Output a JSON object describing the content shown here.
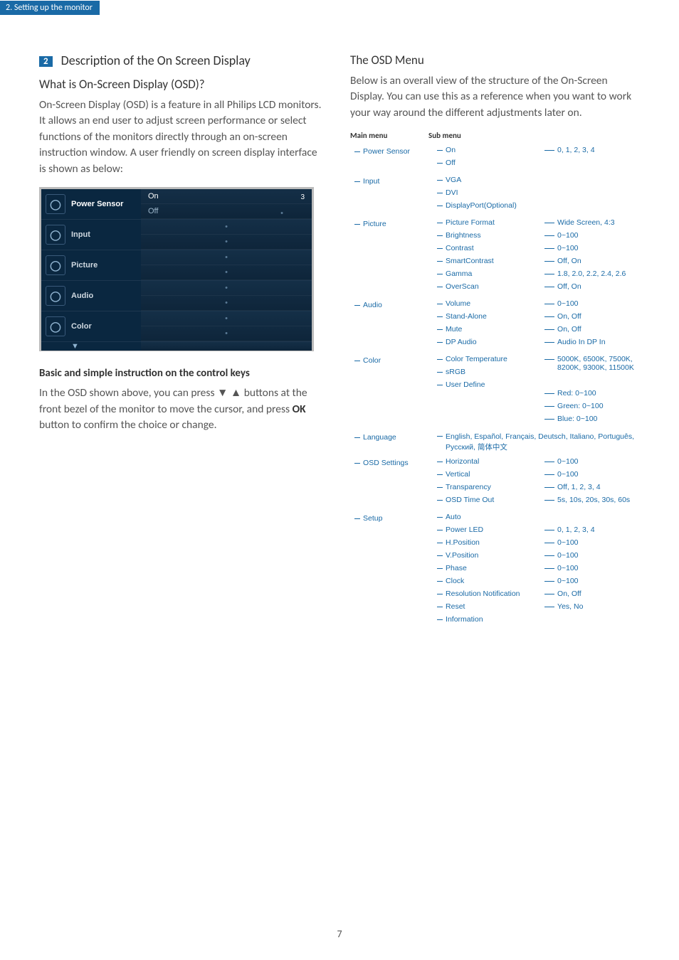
{
  "header": {
    "section_tab": "2. Setting up the monitor"
  },
  "left": {
    "num": "2",
    "title": "Description of the On Screen Display",
    "q": "What is On-Screen Display (OSD)?",
    "p1": "On-Screen Display (OSD) is a feature in all Philips LCD monitors. It allows an end user to adjust screen performance or select functions of the monitors directly through an on-screen instruction window. A user friendly on screen display interface is shown as below:",
    "osd": {
      "items": [
        {
          "label": "Power Sensor",
          "active": true,
          "on": "On",
          "off": "Off",
          "slider": "3"
        },
        {
          "label": "Input"
        },
        {
          "label": "Picture"
        },
        {
          "label": "Audio"
        },
        {
          "label": "Color"
        }
      ]
    },
    "h2": "Basic and simple instruction on the control keys",
    "p2a": "In the OSD shown above, you can press ▼ ▲ buttons at the front bezel of the monitor to move the cursor, and press ",
    "p2ok": "OK",
    "p2b": " button to confirm the choice or change."
  },
  "right": {
    "title": "The OSD Menu",
    "intro": "Below is an overall view of the structure of the On-Screen Display. You can use this as a reference when you want to work your way around the different adjustments later on.",
    "head_main": "Main menu",
    "head_sub": "Sub menu",
    "tree": [
      {
        "m": "Power Sensor",
        "subs": [
          {
            "s": "On",
            "v": "0, 1, 2, 3, 4"
          },
          {
            "s": "Off"
          }
        ]
      },
      {
        "m": "Input",
        "subs": [
          {
            "s": "VGA"
          },
          {
            "s": "DVI"
          },
          {
            "s": "DisplayPort(Optional)"
          }
        ]
      },
      {
        "m": "Picture",
        "subs": [
          {
            "s": "Picture Format",
            "v": "Wide Screen, 4:3"
          },
          {
            "s": "Brightness",
            "v": "0~100"
          },
          {
            "s": "Contrast",
            "v": "0~100"
          },
          {
            "s": "SmartContrast",
            "v": "Off, On"
          },
          {
            "s": "Gamma",
            "v": "1.8, 2.0, 2.2, 2.4, 2.6"
          },
          {
            "s": "OverScan",
            "v": "Off, On"
          }
        ]
      },
      {
        "m": "Audio",
        "subs": [
          {
            "s": "Volume",
            "v": "0~100"
          },
          {
            "s": "Stand-Alone",
            "v": "On, Off"
          },
          {
            "s": "Mute",
            "v": "On, Off"
          },
          {
            "s": "DP Audio",
            "v": "Audio In   DP In"
          }
        ]
      },
      {
        "m": "Color",
        "subs": [
          {
            "s": "Color Temperature",
            "v": "5000K, 6500K, 7500K, 8200K, 9300K, 11500K"
          },
          {
            "s": "sRGB"
          },
          {
            "s": "User Define",
            "vmulti": [
              "Red: 0~100",
              "Green: 0~100",
              "Blue: 0~100"
            ]
          }
        ]
      },
      {
        "m": "Language",
        "lang": "English, Español, Français, Deutsch, Italiano, Português, Русский, 简体中文"
      },
      {
        "m": "OSD Settings",
        "subs": [
          {
            "s": "Horizontal",
            "v": "0~100"
          },
          {
            "s": "Vertical",
            "v": "0~100"
          },
          {
            "s": "Transparency",
            "v": "Off, 1, 2, 3, 4"
          },
          {
            "s": "OSD Time Out",
            "v": "5s, 10s, 20s, 30s, 60s"
          }
        ]
      },
      {
        "m": "Setup",
        "subs": [
          {
            "s": "Auto"
          },
          {
            "s": "Power LED",
            "v": "0, 1, 2, 3, 4"
          },
          {
            "s": "H.Position",
            "v": "0~100"
          },
          {
            "s": "V.Position",
            "v": "0~100"
          },
          {
            "s": "Phase",
            "v": "0~100"
          },
          {
            "s": "Clock",
            "v": "0~100"
          },
          {
            "s": "Resolution Notification",
            "v": "On, Off"
          },
          {
            "s": "Reset",
            "v": "Yes, No"
          },
          {
            "s": "Information"
          }
        ]
      }
    ]
  },
  "page_number": "7"
}
